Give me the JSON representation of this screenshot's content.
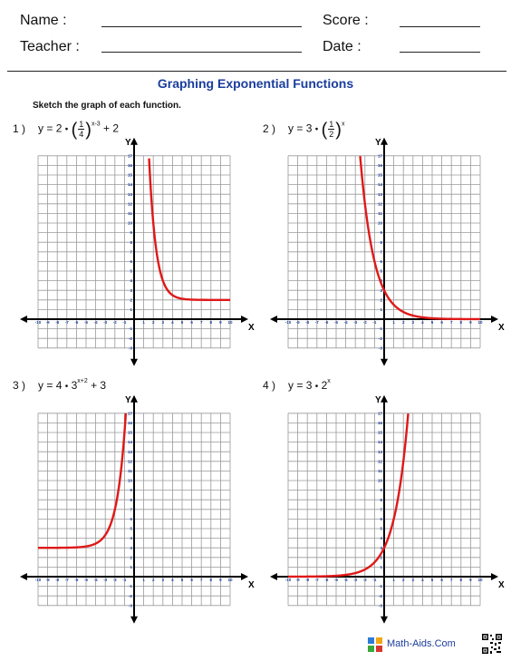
{
  "header": {
    "name_label": "Name :",
    "teacher_label": "Teacher :",
    "score_label": "Score :",
    "date_label": "Date :"
  },
  "title": "Graphing Exponential Functions",
  "instructions": "Sketch the graph of each function.",
  "axis_text": {
    "x_letter": "X",
    "y_letter": "Y"
  },
  "problems": [
    {
      "number": "1 )",
      "eq": {
        "lhs": "y = 2",
        "dot": "•",
        "num": "1",
        "den": "4",
        "exponent": "x-3",
        "tail": "+ 2"
      },
      "curve_color": "#e01818"
    },
    {
      "number": "2 )",
      "eq": {
        "lhs": "y = 3",
        "dot": "•",
        "num": "1",
        "den": "2",
        "exponent": "x"
      },
      "curve_color": "#e01818"
    },
    {
      "number": "3 )",
      "eq": {
        "lhs": "y = 4",
        "dot": "•",
        "base": "3",
        "exponent": "x+2",
        "tail": "+ 3"
      },
      "curve_color": "#e01818"
    },
    {
      "number": "4 )",
      "eq": {
        "lhs": "y = 3",
        "dot": "•",
        "base": "2",
        "exponent": "x"
      },
      "curve_color": "#e01818"
    }
  ],
  "footer": {
    "site": "Math-Aids.Com",
    "logo_icon": "math-aids-logo-icon",
    "qr_icon": "qr-code-icon"
  },
  "colors": {
    "title": "#1a3d9c",
    "tick_labels": "#1a3d9c",
    "curve": "#e01818",
    "grid": "#9a9a9a"
  }
}
